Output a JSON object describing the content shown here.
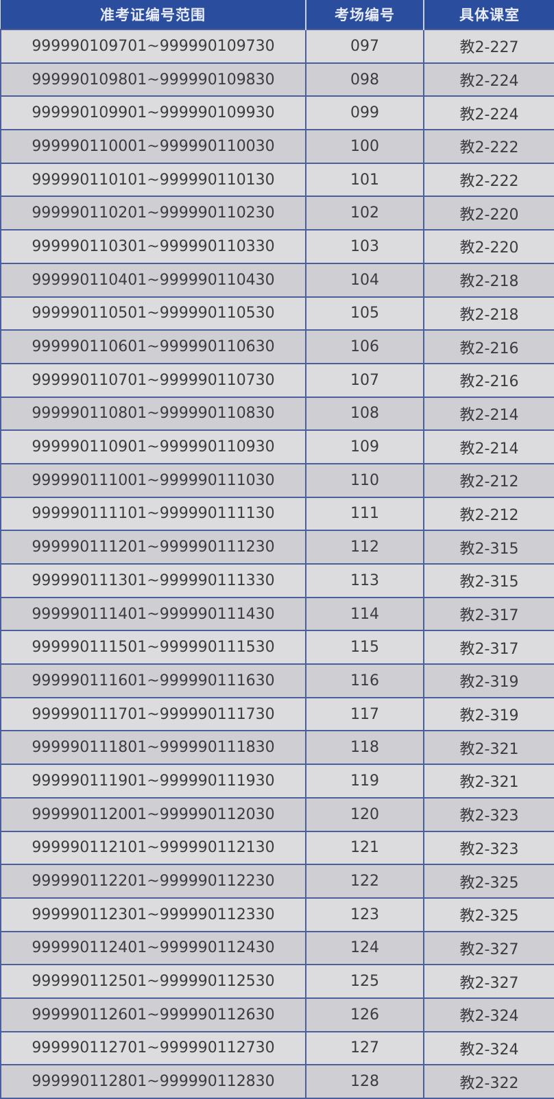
{
  "table": {
    "headers": [
      "准考证编号范围",
      "考场编号",
      "具体课室"
    ],
    "rows": [
      [
        "999990109701~999990109730",
        "097",
        "教2-227"
      ],
      [
        "999990109801~999990109830",
        "098",
        "教2-224"
      ],
      [
        "999990109901~999990109930",
        "099",
        "教2-224"
      ],
      [
        "999990110001~999990110030",
        "100",
        "教2-222"
      ],
      [
        "999990110101~999990110130",
        "101",
        "教2-222"
      ],
      [
        "999990110201~999990110230",
        "102",
        "教2-220"
      ],
      [
        "999990110301~999990110330",
        "103",
        "教2-220"
      ],
      [
        "999990110401~999990110430",
        "104",
        "教2-218"
      ],
      [
        "999990110501~999990110530",
        "105",
        "教2-218"
      ],
      [
        "999990110601~999990110630",
        "106",
        "教2-216"
      ],
      [
        "999990110701~999990110730",
        "107",
        "教2-216"
      ],
      [
        "999990110801~999990110830",
        "108",
        "教2-214"
      ],
      [
        "999990110901~999990110930",
        "109",
        "教2-214"
      ],
      [
        "999990111001~999990111030",
        "110",
        "教2-212"
      ],
      [
        "999990111101~999990111130",
        "111",
        "教2-212"
      ],
      [
        "999990111201~999990111230",
        "112",
        "教2-315"
      ],
      [
        "999990111301~999990111330",
        "113",
        "教2-315"
      ],
      [
        "999990111401~999990111430",
        "114",
        "教2-317"
      ],
      [
        "999990111501~999990111530",
        "115",
        "教2-317"
      ],
      [
        "999990111601~999990111630",
        "116",
        "教2-319"
      ],
      [
        "999990111701~999990111730",
        "117",
        "教2-319"
      ],
      [
        "999990111801~999990111830",
        "118",
        "教2-321"
      ],
      [
        "999990111901~999990111930",
        "119",
        "教2-321"
      ],
      [
        "999990112001~999990112030",
        "120",
        "教2-323"
      ],
      [
        "999990112101~999990112130",
        "121",
        "教2-323"
      ],
      [
        "999990112201~999990112230",
        "122",
        "教2-325"
      ],
      [
        "999990112301~999990112330",
        "123",
        "教2-325"
      ],
      [
        "999990112401~999990112430",
        "124",
        "教2-327"
      ],
      [
        "999990112501~999990112530",
        "125",
        "教2-327"
      ],
      [
        "999990112601~999990112630",
        "126",
        "教2-324"
      ],
      [
        "999990112701~999990112730",
        "127",
        "教2-324"
      ],
      [
        "999990112801~999990112830",
        "128",
        "教2-322"
      ]
    ]
  },
  "colors": {
    "header_bg": "#2b4d9e",
    "grid": "#4a5f9c"
  }
}
